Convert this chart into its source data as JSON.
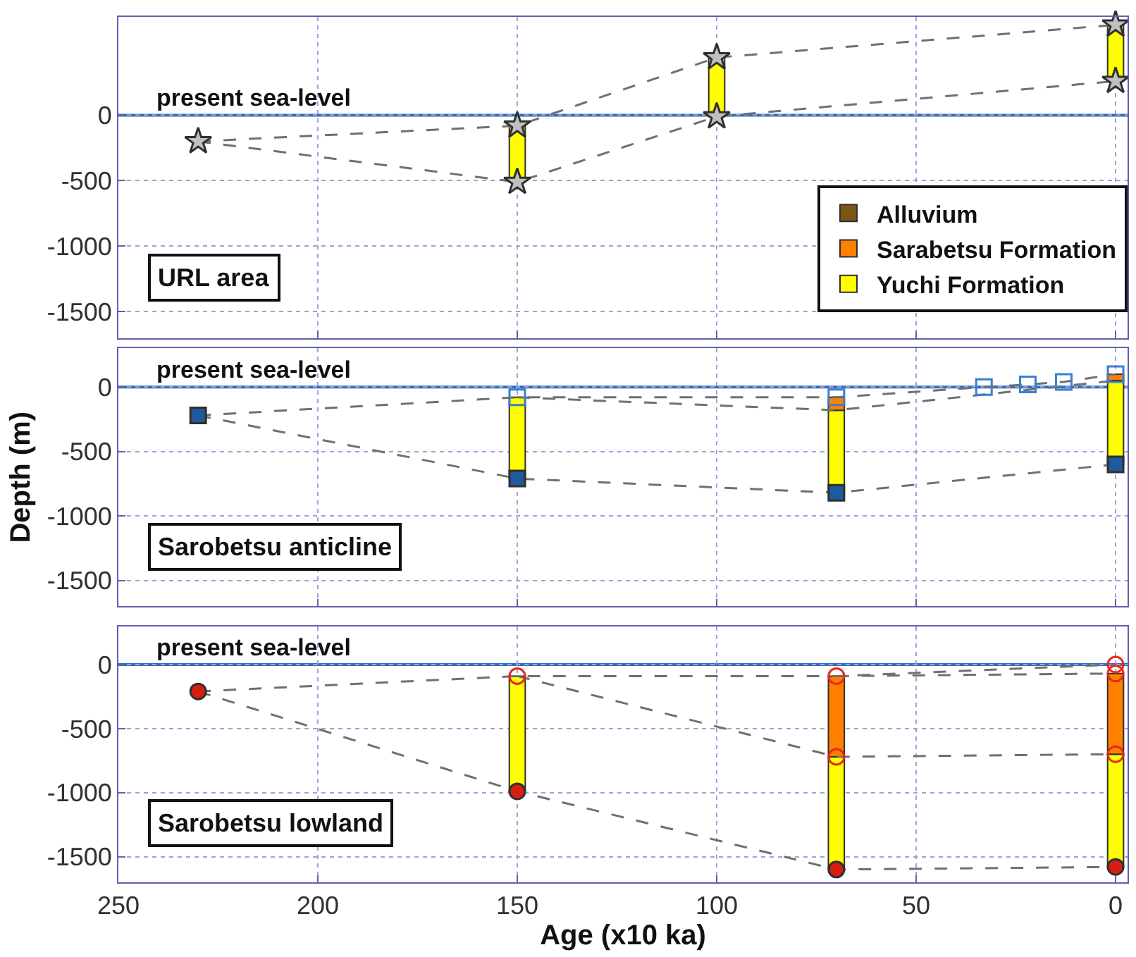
{
  "chart_data": [
    {
      "type": "line",
      "annotations": [
        "URL area"
      ],
      "xlim": [
        250,
        -3
      ],
      "xticks": [
        250,
        200,
        150,
        100,
        50,
        0
      ],
      "ylim": [
        -1700,
        750
      ],
      "yticks": [
        -1500,
        -1000,
        -500,
        0
      ],
      "grid": true,
      "tick_labels": "y",
      "legend": "bottom right",
      "ref_lines": [
        {
          "axis": "y",
          "value": 0,
          "label": "present sea-level",
          "color": "#2f6fbf"
        }
      ],
      "series": [
        {
          "type": "bar",
          "name": "Alluvium",
          "color": "#7b5514",
          "x": [
            null
          ],
          "base": [
            null
          ],
          "values": [
            null
          ]
        },
        {
          "type": "bar",
          "name": "Sarabetsu Formation",
          "color": "#ff8000",
          "x": [
            null
          ],
          "base": [
            null
          ],
          "values": [
            null
          ]
        },
        {
          "type": "bar",
          "name": "Yuchi Formation",
          "color": "#ffff00",
          "x": [
            150,
            100,
            0
          ],
          "base": [
            -510,
            -10,
            260
          ],
          "values": [
            430,
            450,
            430
          ]
        },
        {
          "color": "#707070",
          "line_style": "dashed",
          "marker": "none",
          "x": [
            230,
            150,
            100,
            0
          ],
          "values": [
            -200,
            -80,
            440,
            690
          ]
        },
        {
          "color": "#707070",
          "line_style": "dashed",
          "marker": "none",
          "x": [
            230,
            150,
            100,
            0
          ],
          "values": [
            -200,
            -510,
            -10,
            260
          ]
        },
        {
          "type": "scatter",
          "color": "#c0c0c0",
          "marker": "star",
          "x": [
            230,
            150,
            150,
            100,
            100,
            0,
            0
          ],
          "values": [
            -200,
            -80,
            -510,
            440,
            -10,
            690,
            260
          ]
        }
      ]
    },
    {
      "type": "line",
      "ylabel": "Depth (m)",
      "annotations": [
        "Sarobetsu anticline"
      ],
      "xlim": [
        250,
        -3
      ],
      "xticks": [
        250,
        200,
        150,
        100,
        50,
        0
      ],
      "ylim": [
        -1700,
        300
      ],
      "yticks": [
        -1500,
        -1000,
        -500,
        0
      ],
      "grid": true,
      "tick_labels": "y",
      "ref_lines": [
        {
          "axis": "y",
          "value": 0,
          "label": "present sea-level",
          "color": "#2f6fbf"
        }
      ],
      "series": [
        {
          "type": "bar",
          "color": "#ffff00",
          "x": [
            150,
            70,
            0
          ],
          "base": [
            -710,
            -820,
            -600
          ],
          "values": [
            630,
            640,
            650
          ]
        },
        {
          "type": "bar",
          "color": "#ff8000",
          "x": [
            70,
            0
          ],
          "base": [
            -180,
            50
          ],
          "values": [
            100,
            50
          ]
        },
        {
          "color": "#707070",
          "line_style": "dashed",
          "marker": "none",
          "x": [
            230,
            150,
            70,
            33,
            22,
            13,
            0
          ],
          "values": [
            -220,
            -80,
            -80,
            0,
            20,
            40,
            100
          ]
        },
        {
          "color": "#707070",
          "line_style": "dashed",
          "marker": "none",
          "x": [
            150,
            70,
            0
          ],
          "values": [
            -80,
            -180,
            50
          ]
        },
        {
          "color": "#707070",
          "line_style": "dashed",
          "marker": "none",
          "x": [
            230,
            150,
            70,
            0
          ],
          "values": [
            -220,
            -710,
            -820,
            -600
          ]
        },
        {
          "type": "scatter",
          "color": "#1f5a9a",
          "marker": "square",
          "x": [
            230,
            150,
            70,
            0
          ],
          "values": [
            -220,
            -710,
            -820,
            -600
          ]
        },
        {
          "type": "scatter",
          "color": "#3a7fd0",
          "marker": "square-open",
          "x": [
            150,
            70,
            33,
            22,
            13,
            0
          ],
          "values": [
            -80,
            -80,
            0,
            20,
            40,
            100
          ]
        }
      ]
    },
    {
      "type": "line",
      "xlabel": "Age (x10 ka)",
      "annotations": [
        "Sarobetsu lowland"
      ],
      "xlim": [
        250,
        -3
      ],
      "xticks": [
        250,
        200,
        150,
        100,
        50,
        0
      ],
      "ylim": [
        -1700,
        300
      ],
      "yticks": [
        -1500,
        -1000,
        -500,
        0
      ],
      "grid": true,
      "ref_lines": [
        {
          "axis": "y",
          "value": 0,
          "label": "present sea-level",
          "color": "#2f6fbf"
        }
      ],
      "series": [
        {
          "type": "bar",
          "color": "#ffff00",
          "x": [
            150,
            70,
            0
          ],
          "base": [
            -990,
            -1600,
            -1580
          ],
          "values": [
            900,
            880,
            880
          ]
        },
        {
          "type": "bar",
          "color": "#ff8000",
          "x": [
            70,
            0
          ],
          "base": [
            -720,
            -700
          ],
          "values": [
            630,
            630
          ]
        },
        {
          "color": "#707070",
          "line_style": "dashed",
          "marker": "none",
          "x": [
            230,
            150,
            70,
            0
          ],
          "values": [
            -210,
            -90,
            -90,
            0
          ]
        },
        {
          "color": "#707070",
          "line_style": "dashed",
          "marker": "none",
          "x": [
            70,
            0
          ],
          "values": [
            -90,
            -70
          ]
        },
        {
          "color": "#707070",
          "line_style": "dashed",
          "marker": "none",
          "x": [
            150,
            70,
            0
          ],
          "values": [
            -90,
            -720,
            -700
          ]
        },
        {
          "color": "#707070",
          "line_style": "dashed",
          "marker": "none",
          "x": [
            230,
            150,
            70,
            0
          ],
          "values": [
            -210,
            -990,
            -1600,
            -1580
          ]
        },
        {
          "type": "scatter",
          "color": "#d81e10",
          "marker": "circle",
          "x": [
            230,
            150,
            70,
            0
          ],
          "values": [
            -210,
            -990,
            -1600,
            -1580
          ]
        },
        {
          "type": "scatter",
          "color": "#e8281c",
          "marker": "circle-open",
          "x": [
            150,
            70,
            70,
            0,
            0,
            0
          ],
          "values": [
            -90,
            -90,
            -720,
            0,
            -70,
            -700
          ]
        }
      ]
    }
  ]
}
